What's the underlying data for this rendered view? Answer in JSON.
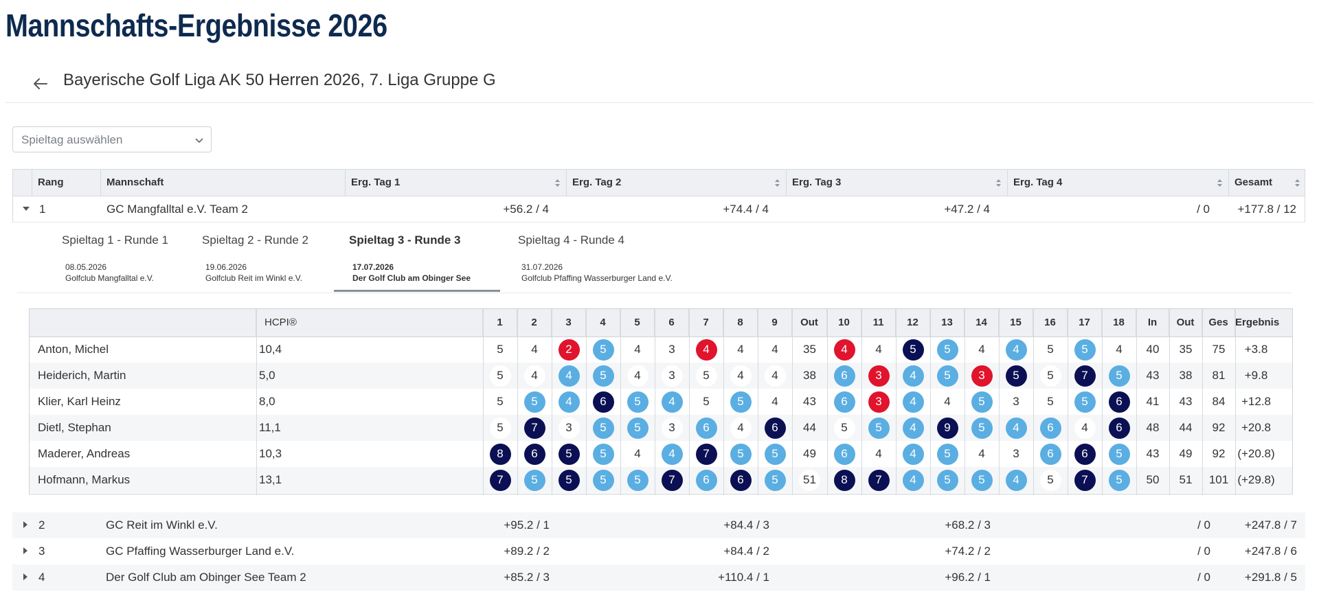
{
  "page": {
    "title": "Mannschafts-Ergebnisse 2026"
  },
  "league": {
    "title": "Bayerische Golf Liga AK 50 Herren 2026, 7. Liga Gruppe G"
  },
  "matchday_select": {
    "placeholder": "Spieltag auswählen"
  },
  "table": {
    "headers": {
      "rank": "Rang",
      "team": "Mannschaft",
      "day1": "Erg. Tag 1",
      "day2": "Erg. Tag 2",
      "day3": "Erg. Tag 3",
      "day4": "Erg. Tag 4",
      "total": "Gesamt"
    },
    "teams": [
      {
        "rank": "1",
        "name": "GC Mangfalltal e.V. Team 2",
        "day1": "+56.2 / 4",
        "day2": "+74.4 / 4",
        "day3": "+47.2 / 4",
        "day4": "/ 0",
        "total": "+177.8 / 12",
        "expanded": true
      },
      {
        "rank": "2",
        "name": "GC Reit im Winkl e.V.",
        "day1": "+95.2 / 1",
        "day2": "+84.4 / 3",
        "day3": "+68.2 / 3",
        "day4": "/ 0",
        "total": "+247.8 / 7"
      },
      {
        "rank": "3",
        "name": "GC Pfaffing Wasserburger Land e.V.",
        "day1": "+89.2 / 2",
        "day2": "+84.4 / 2",
        "day3": "+74.2 / 2",
        "day4": "/ 0",
        "total": "+247.8 / 6"
      },
      {
        "rank": "4",
        "name": "Der Golf Club am Obinger See Team 2",
        "day1": "+85.2 / 3",
        "day2": "+110.4 / 1",
        "day3": "+96.2 / 1",
        "day4": "/ 0",
        "total": "+291.8 / 5"
      }
    ]
  },
  "rounds": [
    {
      "title": "Spieltag 1 - Runde 1",
      "date": "08.05.2026",
      "club": "Golfclub Mangfalltal e.V."
    },
    {
      "title": "Spieltag 2 - Runde 2",
      "date": "19.06.2026",
      "club": "Golfclub Reit im Winkl e.V."
    },
    {
      "title": "Spieltag 3 - Runde 3",
      "date": "17.07.2026",
      "club": "Der Golf Club am Obinger See",
      "active": true
    },
    {
      "title": "Spieltag 4 - Runde 4",
      "date": "31.07.2026",
      "club": "Golfclub Pfaffing Wasserburger Land e.V."
    }
  ],
  "scorecard": {
    "headers": {
      "hcpi": "HCPI®",
      "holes": [
        "1",
        "2",
        "3",
        "4",
        "5",
        "6",
        "7",
        "8",
        "9",
        "Out",
        "10",
        "11",
        "12",
        "13",
        "14",
        "15",
        "16",
        "17",
        "18",
        "In",
        "Out",
        "Ges",
        "Ergebnis"
      ]
    },
    "players": [
      {
        "name": "Anton, Michel",
        "hcpi": "10,4",
        "scores": [
          "5",
          "4",
          "2",
          "5",
          "4",
          "3",
          "4",
          "4",
          "4",
          "35",
          "4",
          "4",
          "5",
          "5",
          "4",
          "4",
          "5",
          "5",
          "4",
          "40",
          "35",
          "75",
          "+3.8"
        ],
        "styles": [
          "n",
          "n",
          "r",
          "l",
          "n",
          "n",
          "r",
          "n",
          "n",
          "n",
          "r",
          "n",
          "d",
          "l",
          "n",
          "l",
          "n",
          "l",
          "n",
          "n",
          "n",
          "n",
          "n"
        ]
      },
      {
        "name": "Heiderich, Martin",
        "hcpi": "5,0",
        "scores": [
          "5",
          "4",
          "4",
          "5",
          "4",
          "3",
          "5",
          "4",
          "4",
          "38",
          "6",
          "3",
          "4",
          "5",
          "3",
          "5",
          "5",
          "7",
          "5",
          "43",
          "38",
          "81",
          "+9.8"
        ],
        "styles": [
          "w",
          "w",
          "l",
          "l",
          "w",
          "w",
          "w",
          "w",
          "w",
          "n",
          "l",
          "r",
          "l",
          "l",
          "r",
          "d",
          "w",
          "d",
          "l",
          "n",
          "n",
          "n",
          "n"
        ]
      },
      {
        "name": "Klier, Karl Heinz",
        "hcpi": "8,0",
        "scores": [
          "5",
          "5",
          "4",
          "6",
          "5",
          "4",
          "5",
          "5",
          "4",
          "43",
          "6",
          "3",
          "4",
          "4",
          "5",
          "3",
          "5",
          "5",
          "6",
          "41",
          "43",
          "84",
          "+12.8"
        ],
        "styles": [
          "n",
          "l",
          "l",
          "d",
          "l",
          "l",
          "n",
          "l",
          "n",
          "n",
          "l",
          "r",
          "l",
          "n",
          "l",
          "n",
          "n",
          "l",
          "d",
          "n",
          "n",
          "n",
          "n"
        ]
      },
      {
        "name": "Dietl, Stephan",
        "hcpi": "11,1",
        "scores": [
          "5",
          "7",
          "3",
          "5",
          "5",
          "3",
          "6",
          "4",
          "6",
          "44",
          "5",
          "5",
          "4",
          "9",
          "5",
          "4",
          "6",
          "4",
          "6",
          "48",
          "44",
          "92",
          "+20.8"
        ],
        "styles": [
          "w",
          "d",
          "w",
          "l",
          "l",
          "w",
          "l",
          "w",
          "d",
          "n",
          "w",
          "l",
          "l",
          "d",
          "l",
          "l",
          "l",
          "w",
          "d",
          "n",
          "n",
          "n",
          "n"
        ]
      },
      {
        "name": "Maderer, Andreas",
        "hcpi": "10,3",
        "scores": [
          "8",
          "6",
          "5",
          "5",
          "4",
          "4",
          "7",
          "5",
          "5",
          "49",
          "6",
          "4",
          "4",
          "5",
          "4",
          "3",
          "6",
          "6",
          "5",
          "43",
          "49",
          "92",
          "(+20.8)"
        ],
        "styles": [
          "d",
          "d",
          "d",
          "l",
          "n",
          "l",
          "d",
          "l",
          "l",
          "n",
          "l",
          "n",
          "l",
          "l",
          "n",
          "n",
          "l",
          "d",
          "l",
          "n",
          "n",
          "n",
          "n"
        ]
      },
      {
        "name": "Hofmann, Markus",
        "hcpi": "13,1",
        "scores": [
          "7",
          "5",
          "5",
          "5",
          "5",
          "7",
          "6",
          "6",
          "5",
          "51",
          "8",
          "7",
          "4",
          "5",
          "5",
          "4",
          "5",
          "7",
          "5",
          "50",
          "51",
          "101",
          "(+29.8)"
        ],
        "styles": [
          "d",
          "l",
          "d",
          "l",
          "l",
          "d",
          "l",
          "d",
          "l",
          "w",
          "d",
          "d",
          "l",
          "l",
          "l",
          "l",
          "w",
          "d",
          "l",
          "n",
          "n",
          "n",
          "n"
        ]
      }
    ]
  },
  "colors": {
    "title": "#0e2a4f",
    "score_red": "#e0142c",
    "score_light_blue": "#5aaee2",
    "score_dark_navy": "#0b1054"
  }
}
